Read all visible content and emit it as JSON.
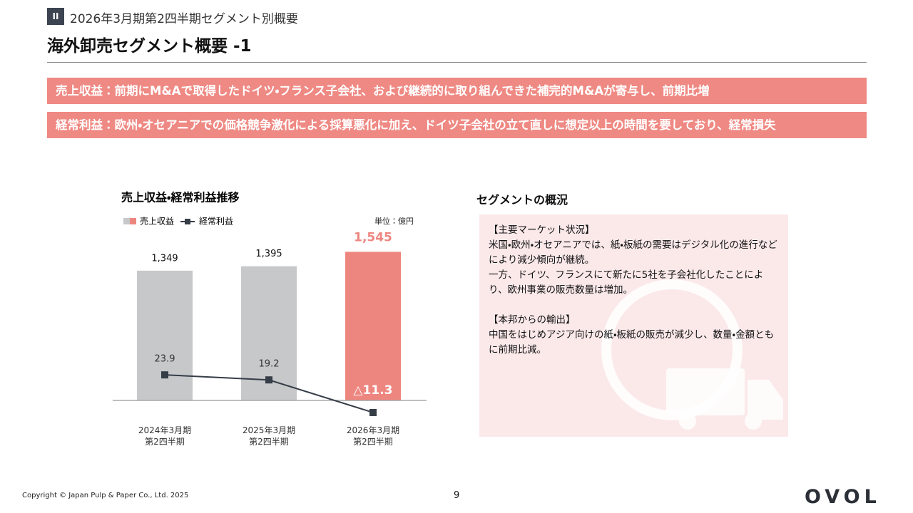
{
  "header": {
    "badge": "II",
    "section": "2026年3月期第2四半期セグメント別概要",
    "title": "海外卸売セグメント概要 -1"
  },
  "banners": [
    "売上収益：前期にM&Aで取得したドイツ・フランス子会社、および継続的に取り組んできた補完的M&Aが寄与し、前期比増",
    "経常利益：欧州・オセアニアでの価格競争激化による採算悪化に加え、ドイツ子会社の立て直しに想定以上の時間を要しており、経常損失"
  ],
  "chart_data": {
    "type": "bar_line",
    "title": "売上収益・経常利益推移",
    "unit": "単位：億円",
    "categories": [
      "2024年3月期\n第2四半期",
      "2025年3月期\n第2四半期",
      "2026年3月期\n第2四半期"
    ],
    "series": [
      {
        "name": "売上収益",
        "type": "bar",
        "color": "#c6c8ca",
        "colors": [
          "#c6c8ca",
          "#c6c8ca",
          "#ee8680"
        ],
        "values": [
          1349,
          1395,
          1545
        ],
        "value_labels": [
          "1,349",
          "1,395",
          "1,545"
        ]
      },
      {
        "name": "経常利益",
        "type": "line",
        "axis": "y2",
        "color": "#353d47",
        "values": [
          23.9,
          19.2,
          -11.3
        ],
        "value_labels": [
          "23.9",
          "19.2",
          "△11.3"
        ]
      }
    ],
    "ylim": [
      -200,
      1800
    ],
    "y2lim": [
      -18,
      162
    ]
  },
  "segment": {
    "title": "セグメントの概況",
    "paragraphs": [
      "【主要マーケット状況】",
      "米国・欧州・オセアニアでは、紙・板紙の需要はデジタル化の進行などにより減少傾向が継続。",
      "一方、ドイツ、フランスにて新たに5社を子会社化したことにより、欧州事業の販売数量は増加。",
      "",
      "【本邦からの輸出】",
      "中国をはじめアジア向けの紙・板紙の販売が減少し、数量・金額ともに前期比減。"
    ]
  },
  "footer": {
    "copyright": "Copyright © Japan Pulp & Paper Co., Ltd. 2025",
    "page": "9",
    "logo": "OVOL"
  }
}
